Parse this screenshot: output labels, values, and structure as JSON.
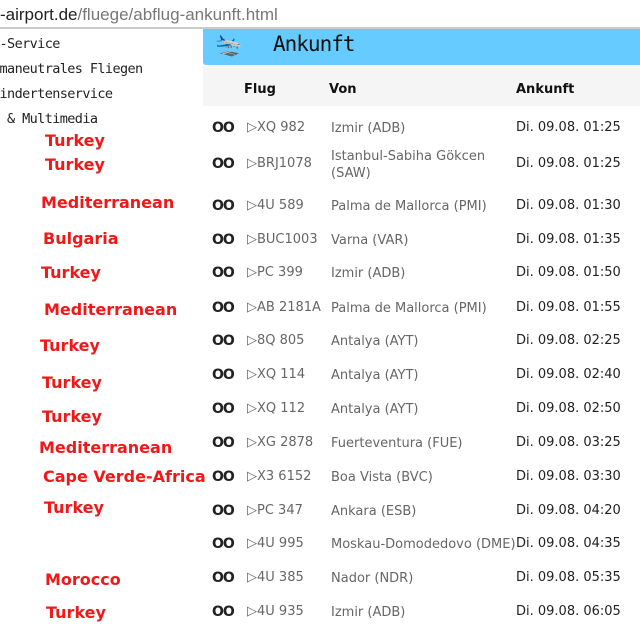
{
  "url": {
    "host": "-airport.de",
    "path": "/fluege/abflug-ankunft.html"
  },
  "menu": [
    "P-Service",
    "imaneutrales Fliegen",
    "hindertenservice",
    "o & Multimedia"
  ],
  "header": {
    "title": "Ankunft",
    "icon": "plane-landing-icon"
  },
  "table": {
    "columns": [
      "Flug",
      "Von",
      "Ankunft"
    ],
    "rows": [
      {
        "flight": "XQ 982",
        "from": "Izmir (ADB)",
        "arrival": "Di. 09.08. 01:25"
      },
      {
        "flight": "BRJ1078",
        "from": "Istanbul-Sabiha Gökcen (SAW)",
        "arrival": "Di. 09.08. 01:25"
      },
      {
        "flight": "4U 589",
        "from": "Palma de Mallorca (PMI)",
        "arrival": "Di. 09.08. 01:30"
      },
      {
        "flight": "BUC1003",
        "from": "Varna (VAR)",
        "arrival": "Di. 09.08. 01:35"
      },
      {
        "flight": "PC 399",
        "from": "Izmir (ADB)",
        "arrival": "Di. 09.08. 01:50"
      },
      {
        "flight": "AB 2181A",
        "from": "Palma de Mallorca (PMI)",
        "arrival": "Di. 09.08. 01:55"
      },
      {
        "flight": "8Q 805",
        "from": "Antalya (AYT)",
        "arrival": "Di. 09.08. 02:25"
      },
      {
        "flight": "XQ 114",
        "from": "Antalya (AYT)",
        "arrival": "Di. 09.08. 02:40"
      },
      {
        "flight": "XQ 112",
        "from": "Antalya (AYT)",
        "arrival": "Di. 09.08. 02:50"
      },
      {
        "flight": "XG 2878",
        "from": "Fuerteventura (FUE)",
        "arrival": "Di. 09.08. 03:25"
      },
      {
        "flight": "X3 6152",
        "from": "Boa Vista (BVC)",
        "arrival": "Di. 09.08. 03:30"
      },
      {
        "flight": "PC 347",
        "from": "Ankara (ESB)",
        "arrival": "Di. 09.08. 04:20"
      },
      {
        "flight": "4U 995",
        "from": "Moskau-Domodedovo (DME)",
        "arrival": "Di. 09.08. 04:35"
      },
      {
        "flight": "4U 385",
        "from": "Nador (NDR)",
        "arrival": "Di. 09.08. 05:35"
      },
      {
        "flight": "4U 935",
        "from": "Izmir (ADB)",
        "arrival": "Di. 09.08. 06:05"
      }
    ]
  },
  "annotations": [
    "Turkey",
    "Turkey",
    "Mediterranean",
    "Bulgaria",
    "Turkey",
    "Mediterranean",
    "Turkey",
    "Turkey",
    "Turkey",
    "Mediterranean",
    "Cape Verde-Africa",
    "Turkey",
    "Morocco",
    "Turkey"
  ],
  "colors": {
    "header": "#66ccff",
    "annotation": "#f01818"
  }
}
